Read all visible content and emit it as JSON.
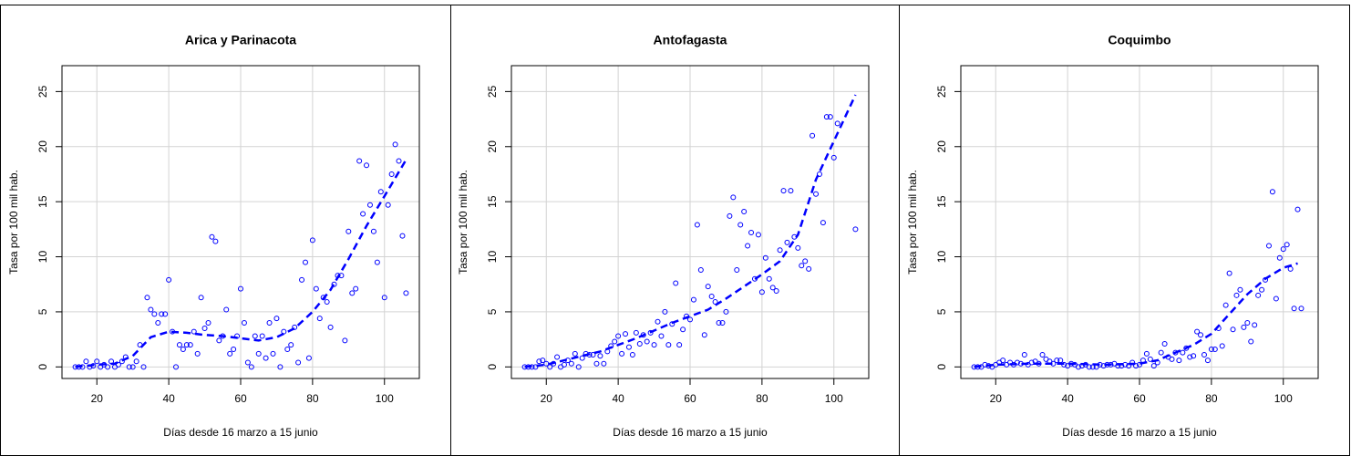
{
  "chart_data": [
    {
      "type": "scatter",
      "title": "Arica y Parinacota",
      "xlabel": "Días desde 16 marzo a 15 junio",
      "ylabel": "Tasa por 100 mil hab.",
      "xlim": [
        10.3,
        109.7
      ],
      "ylim": [
        -1.05,
        27.35
      ],
      "xticks": [
        20,
        40,
        60,
        80,
        100
      ],
      "yticks": [
        0,
        5,
        10,
        15,
        20,
        25
      ],
      "grid": true,
      "points": {
        "color": "#0000ff",
        "x": [
          14,
          15,
          16,
          17,
          18,
          19,
          20,
          21,
          22,
          23,
          24,
          25,
          26,
          27,
          28,
          29,
          30,
          31,
          32,
          33,
          34,
          35,
          36,
          37,
          38,
          39,
          40,
          41,
          42,
          43,
          44,
          45,
          46,
          47,
          48,
          49,
          50,
          51,
          52,
          53,
          54,
          55,
          56,
          57,
          58,
          59,
          60,
          61,
          62,
          63,
          64,
          65,
          66,
          67,
          68,
          69,
          70,
          71,
          72,
          73,
          74,
          75,
          76,
          77,
          78,
          79,
          80,
          81,
          82,
          83,
          84,
          85,
          86,
          87,
          88,
          89,
          90,
          91,
          92,
          93,
          94,
          95,
          96,
          97,
          98,
          99,
          100,
          101,
          102,
          103,
          104,
          105,
          106
        ],
        "y": [
          0,
          0,
          0,
          0.5,
          0,
          0.1,
          0.5,
          0,
          0.2,
          0,
          0.5,
          0,
          0.2,
          0.5,
          0.9,
          0,
          0,
          0.5,
          2,
          0,
          6.3,
          5.2,
          4.8,
          4,
          4.8,
          4.8,
          7.9,
          3.2,
          0,
          2,
          1.6,
          2,
          2,
          3.2,
          1.2,
          6.3,
          3.5,
          4,
          11.8,
          11.4,
          2.4,
          2.8,
          5.2,
          1.2,
          1.6,
          2.8,
          7.1,
          4,
          0.4,
          0,
          2.8,
          1.2,
          2.8,
          0.8,
          4,
          1.2,
          4.4,
          0,
          3.2,
          1.6,
          2,
          3.6,
          0.4,
          7.9,
          9.5,
          0.8,
          11.5,
          7.1,
          4.4,
          6.3,
          5.9,
          3.6,
          7.5,
          8.3,
          8.3,
          2.4,
          12.3,
          6.7,
          7.1,
          18.7,
          13.9,
          18.3,
          14.7,
          12.3,
          9.5,
          15.9,
          6.3,
          14.7,
          17.5,
          20.2,
          18.7,
          11.9,
          6.7
        ]
      },
      "trend": {
        "color": "#0000ff",
        "x": [
          14,
          20,
          25,
          30,
          35,
          40,
          45,
          50,
          55,
          60,
          65,
          70,
          75,
          80,
          85,
          90,
          95,
          100,
          106
        ],
        "y": [
          0,
          0.2,
          0.3,
          1,
          2.7,
          3.2,
          3.1,
          2.9,
          2.8,
          2.6,
          2.4,
          2.7,
          3.5,
          5,
          7,
          9.8,
          12.8,
          15.5,
          18.8
        ]
      }
    },
    {
      "type": "scatter",
      "title": "Antofagasta",
      "xlabel": "Días desde 16 marzo a 15 junio",
      "ylabel": "Tasa por 100 mil hab.",
      "xlim": [
        10.3,
        109.7
      ],
      "ylim": [
        -1.05,
        27.35
      ],
      "xticks": [
        20,
        40,
        60,
        80,
        100
      ],
      "yticks": [
        0,
        5,
        10,
        15,
        20,
        25
      ],
      "grid": true,
      "points": {
        "color": "#0000ff",
        "x": [
          14,
          15,
          16,
          17,
          18,
          19,
          20,
          21,
          22,
          23,
          24,
          25,
          26,
          27,
          28,
          29,
          30,
          31,
          32,
          33,
          34,
          35,
          36,
          37,
          38,
          39,
          40,
          41,
          42,
          43,
          44,
          45,
          46,
          47,
          48,
          49,
          50,
          51,
          52,
          53,
          54,
          55,
          56,
          57,
          58,
          59,
          60,
          61,
          62,
          63,
          64,
          65,
          66,
          67,
          68,
          69,
          70,
          71,
          72,
          73,
          74,
          75,
          76,
          77,
          78,
          79,
          80,
          81,
          82,
          83,
          84,
          85,
          86,
          87,
          88,
          89,
          90,
          91,
          92,
          93,
          94,
          95,
          96,
          97,
          98,
          99,
          100,
          101,
          106
        ],
        "y": [
          0,
          0,
          0,
          0,
          0.5,
          0.6,
          0.3,
          0,
          0.3,
          0.9,
          0,
          0.2,
          0.6,
          0.3,
          1.2,
          0,
          0.8,
          1.2,
          1.1,
          1.1,
          0.3,
          1,
          0.3,
          1.4,
          1.9,
          2.3,
          2.8,
          1.2,
          3,
          1.8,
          1.1,
          3.1,
          2.1,
          2.9,
          2.3,
          3.1,
          2,
          4.1,
          2.8,
          5,
          2,
          3.9,
          7.6,
          2,
          3.4,
          4.6,
          4.3,
          6.1,
          12.9,
          8.8,
          2.9,
          7.3,
          6.4,
          5.9,
          4,
          4,
          5,
          13.7,
          15.4,
          8.8,
          12.9,
          14.1,
          11,
          12.2,
          8,
          12,
          6.8,
          9.9,
          8,
          7.2,
          6.9,
          10.6,
          16,
          11.3,
          16,
          11.8,
          10.8,
          9.2,
          9.6,
          8.9,
          21,
          15.7,
          17.5,
          13.1,
          22.7,
          22.7,
          19,
          22.1,
          12.5
        ]
      },
      "trend": {
        "color": "#0000ff",
        "x": [
          14,
          20,
          25,
          30,
          35,
          40,
          45,
          50,
          55,
          60,
          65,
          70,
          75,
          80,
          85,
          90,
          95,
          100,
          106
        ],
        "y": [
          0,
          0.2,
          0.6,
          1,
          1.4,
          2,
          2.6,
          3.3,
          4,
          4.6,
          5.2,
          6.2,
          7.3,
          8.4,
          9.6,
          12,
          17,
          20.5,
          24.7
        ]
      }
    },
    {
      "type": "scatter",
      "title": "Coquimbo",
      "xlabel": "Días desde 16 marzo a 15 junio",
      "ylabel": "Tasa por 100 mil hab.",
      "xlim": [
        10.3,
        109.7
      ],
      "ylim": [
        -1.05,
        27.35
      ],
      "xticks": [
        20,
        40,
        60,
        80,
        100
      ],
      "yticks": [
        0,
        5,
        10,
        15,
        20,
        25
      ],
      "grid": true,
      "points": {
        "color": "#0000ff",
        "x": [
          14,
          15,
          16,
          17,
          18,
          19,
          20,
          21,
          22,
          23,
          24,
          25,
          26,
          27,
          28,
          29,
          30,
          31,
          32,
          33,
          34,
          35,
          36,
          37,
          38,
          39,
          40,
          41,
          42,
          43,
          44,
          45,
          46,
          47,
          48,
          49,
          50,
          51,
          52,
          53,
          54,
          55,
          56,
          57,
          58,
          59,
          60,
          61,
          62,
          63,
          64,
          65,
          66,
          67,
          68,
          69,
          70,
          71,
          72,
          73,
          74,
          75,
          76,
          77,
          78,
          79,
          80,
          81,
          82,
          83,
          84,
          85,
          86,
          87,
          88,
          89,
          90,
          91,
          92,
          93,
          94,
          95,
          96,
          97,
          98,
          99,
          100,
          101,
          102,
          103,
          104,
          105
        ],
        "y": [
          0,
          0,
          0,
          0.2,
          0.1,
          0,
          0.2,
          0.4,
          0.6,
          0.2,
          0.4,
          0.2,
          0.4,
          0.3,
          1.1,
          0.2,
          0.4,
          0.5,
          0.3,
          1.1,
          0.7,
          0.5,
          0.3,
          0.6,
          0.6,
          0.2,
          0.1,
          0.3,
          0.2,
          0,
          0.1,
          0.2,
          0,
          0,
          0,
          0.2,
          0.1,
          0.2,
          0.2,
          0.3,
          0.1,
          0.1,
          0.2,
          0.1,
          0.4,
          0.1,
          0.2,
          0.6,
          1.2,
          0.7,
          0.1,
          0.4,
          1.3,
          2.1,
          0.9,
          0.7,
          1.3,
          0.6,
          1.3,
          1.7,
          0.9,
          1,
          3.2,
          2.9,
          1.1,
          0.6,
          1.6,
          1.6,
          3.5,
          1.9,
          5.6,
          8.5,
          3.4,
          6.5,
          7,
          3.6,
          4,
          2.3,
          3.8,
          6.5,
          7,
          7.9,
          11,
          15.9,
          6.2,
          9.9,
          10.7,
          11.1,
          8.9,
          5.3,
          14.3,
          5.3
        ]
      },
      "trend": {
        "color": "#0000ff",
        "x": [
          14,
          20,
          30,
          40,
          50,
          60,
          65,
          70,
          75,
          80,
          85,
          90,
          95,
          100,
          104
        ],
        "y": [
          0,
          0.2,
          0.3,
          0.3,
          0.2,
          0.3,
          0.6,
          1.3,
          2,
          3,
          4.8,
          6.6,
          8,
          9,
          9.4
        ]
      }
    }
  ]
}
